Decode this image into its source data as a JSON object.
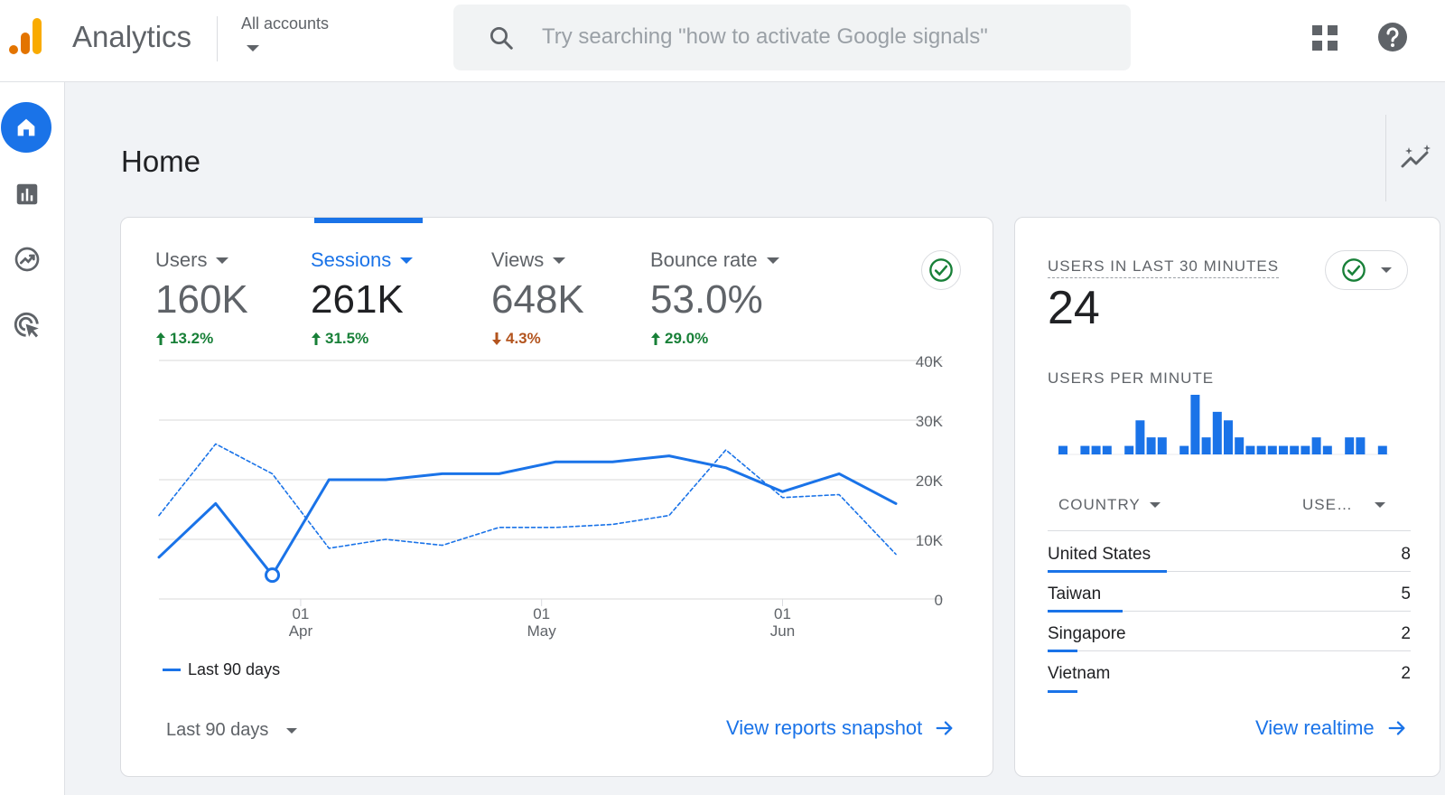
{
  "header": {
    "app_title": "Analytics",
    "account_selector": "All accounts",
    "search_placeholder": "Try searching \"how to activate Google signals\""
  },
  "page": {
    "title": "Home"
  },
  "metrics": [
    {
      "label": "Users",
      "value": "160K",
      "change": "13.2%",
      "direction": "up"
    },
    {
      "label": "Sessions",
      "value": "261K",
      "change": "31.5%",
      "direction": "up",
      "active": true
    },
    {
      "label": "Views",
      "value": "648K",
      "change": "4.3%",
      "direction": "down"
    },
    {
      "label": "Bounce rate",
      "value": "53.0%",
      "change": "29.0%",
      "direction": "up"
    }
  ],
  "chart_data": {
    "type": "line",
    "x_tick_labels": [
      {
        "day": "01",
        "month": "Apr"
      },
      {
        "day": "01",
        "month": "May"
      },
      {
        "day": "01",
        "month": "Jun"
      }
    ],
    "y_tick_labels": [
      "40K",
      "30K",
      "20K",
      "10K",
      "0"
    ],
    "ylim": [
      0,
      40000
    ],
    "series": [
      {
        "name": "Last 90 days",
        "style": "solid",
        "values": [
          7000,
          16000,
          4000,
          20000,
          20000,
          21000,
          21000,
          23000,
          23000,
          24000,
          22000,
          18000,
          21000,
          16000
        ]
      },
      {
        "style": "dashed",
        "values": [
          14000,
          26000,
          21000,
          8500,
          10000,
          9000,
          12000,
          12000,
          12500,
          14000,
          25000,
          17000,
          17500,
          7500
        ]
      }
    ],
    "highlight_index": 2,
    "grid": true
  },
  "legend": {
    "label": "Last 90 days"
  },
  "date_range": {
    "label": "Last 90 days"
  },
  "links": {
    "reports": "View reports snapshot",
    "realtime": "View realtime"
  },
  "realtime": {
    "title": "USERS IN LAST 30 MINUTES",
    "value": "24",
    "subtitle": "USERS PER MINUTE",
    "per_minute": [
      1,
      0,
      1,
      1,
      1,
      0,
      1,
      4,
      2,
      2,
      0,
      1,
      7,
      2,
      5,
      4,
      2,
      1,
      1,
      1,
      1,
      1,
      1,
      2,
      1,
      0,
      2,
      2,
      0,
      1
    ],
    "columns": {
      "country": "COUNTRY",
      "users": "USE…"
    },
    "rows": [
      {
        "country": "United States",
        "users": "8",
        "share": 1.0
      },
      {
        "country": "Taiwan",
        "users": "5",
        "share": 0.625
      },
      {
        "country": "Singapore",
        "users": "2",
        "share": 0.25
      },
      {
        "country": "Vietnam",
        "users": "2",
        "share": 0.25
      }
    ]
  },
  "colors": {
    "accent": "#1a73e8",
    "up": "#188038",
    "down": "#b3541e",
    "logo_orange": "#f9ab00",
    "logo_dark": "#e37400"
  }
}
